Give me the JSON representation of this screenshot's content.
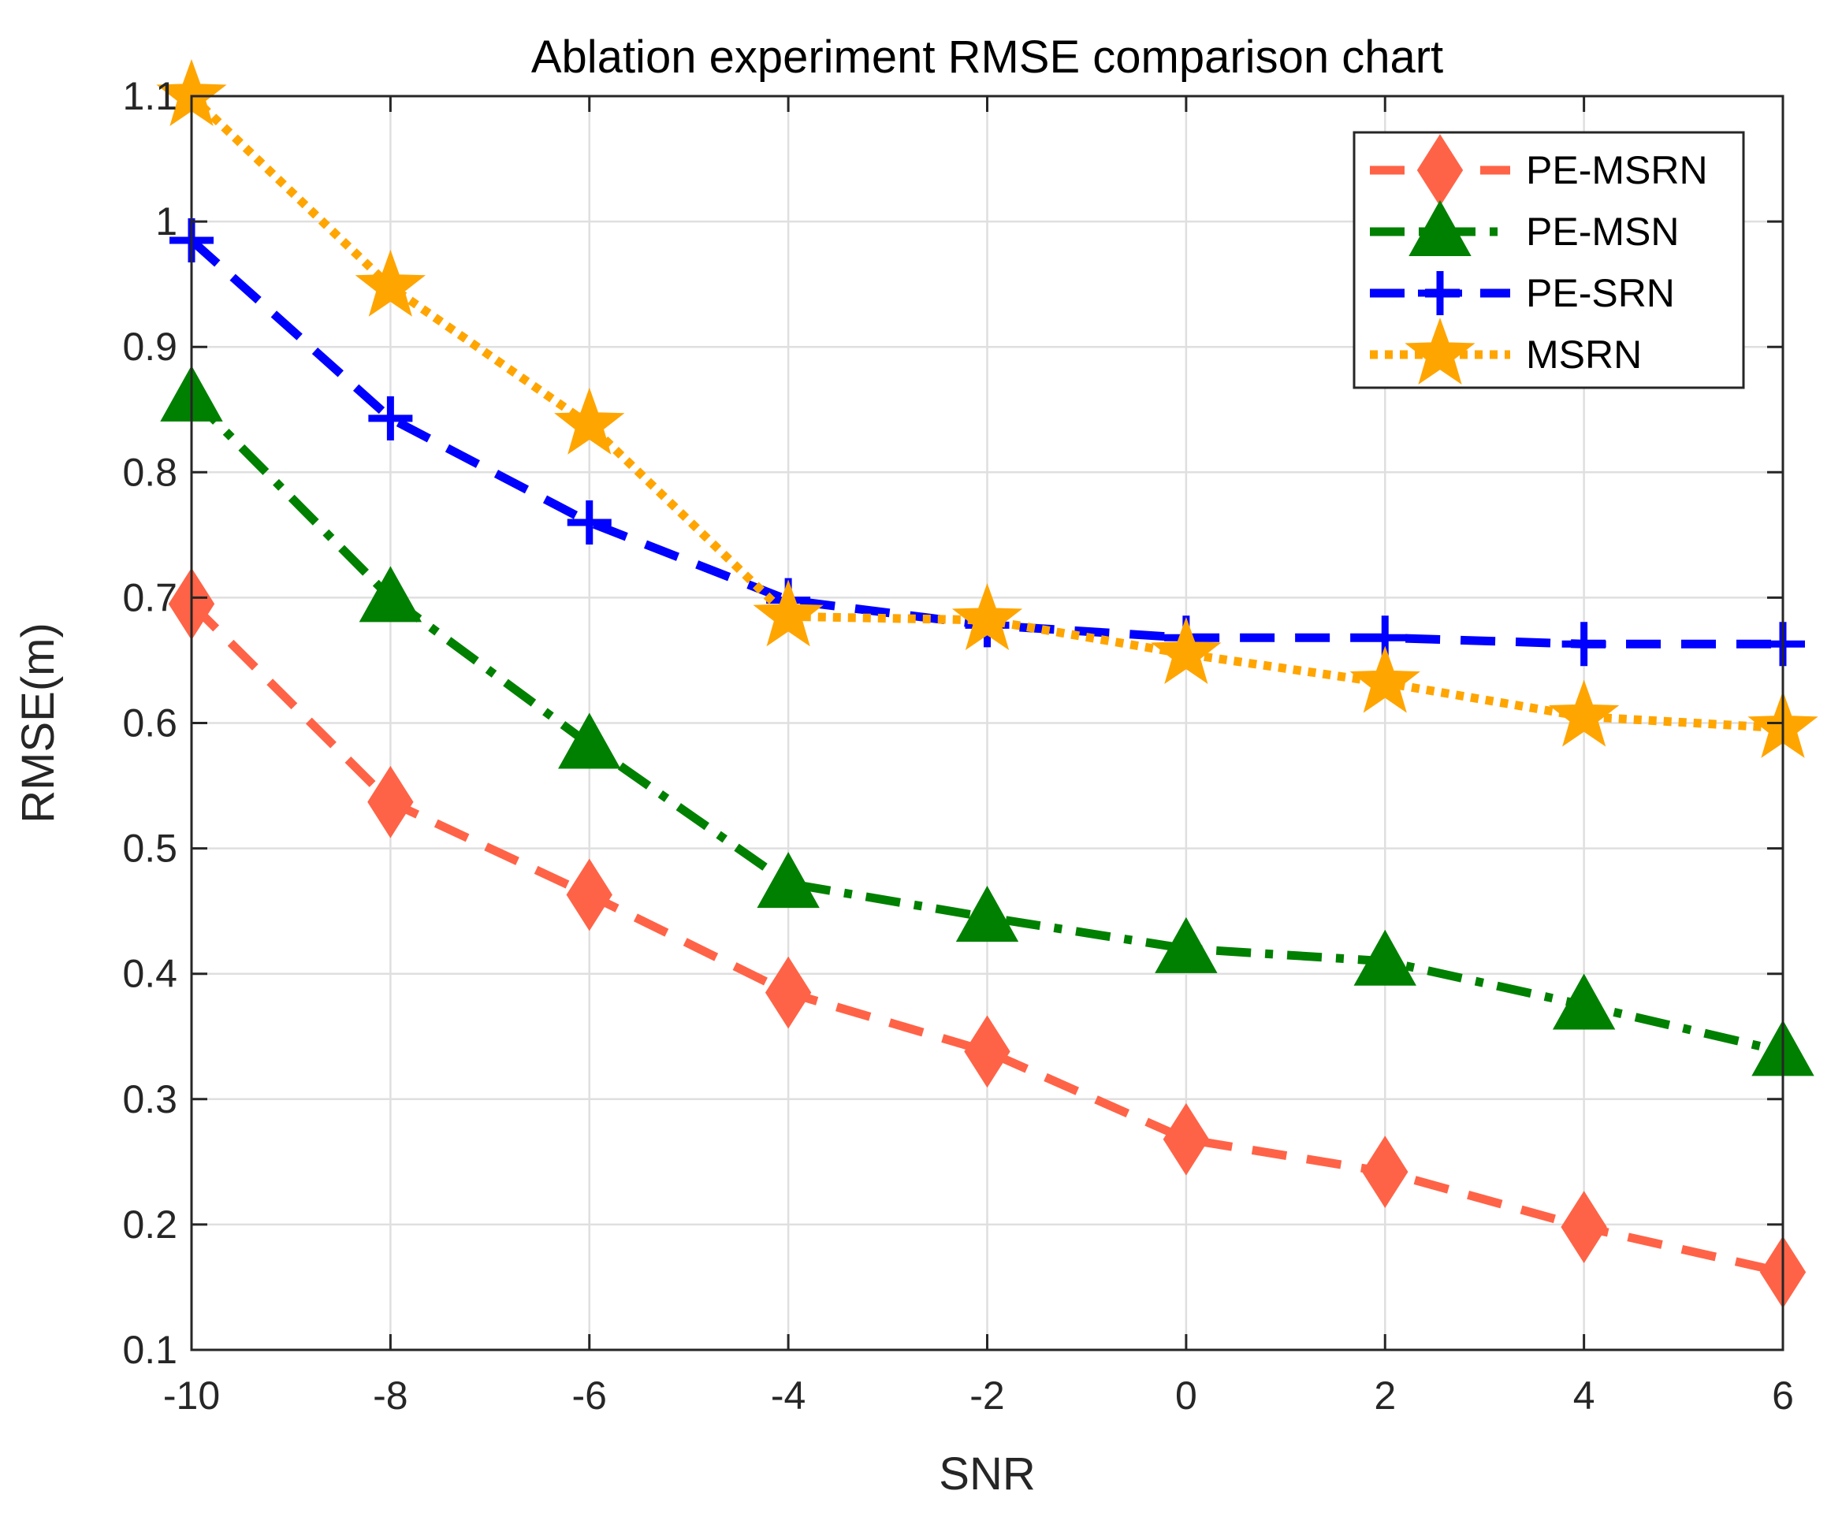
{
  "chart_data": {
    "type": "line",
    "title": "Ablation experiment RMSE comparison chart",
    "xlabel": "SNR",
    "ylabel": "RMSE(m)",
    "x": [
      -10,
      -8,
      -6,
      -4,
      -2,
      0,
      2,
      4,
      6
    ],
    "xlim": [
      -10,
      6
    ],
    "ylim": [
      0.1,
      1.1
    ],
    "xticks": [
      "-10",
      "-8",
      "-6",
      "-4",
      "-2",
      "0",
      "2",
      "4",
      "6"
    ],
    "yticks": [
      "0.1",
      "0.2",
      "0.3",
      "0.4",
      "0.5",
      "0.6",
      "0.7",
      "0.8",
      "0.9",
      "1",
      "1.1"
    ],
    "grid": true,
    "legend_position": "top-right",
    "series": [
      {
        "name": "PE-MSRN",
        "values": [
          0.695,
          0.537,
          0.463,
          0.385,
          0.338,
          0.268,
          0.242,
          0.198,
          0.162
        ],
        "color": "#FF6347",
        "line_style": "dashed",
        "marker": "diamond"
      },
      {
        "name": "PE-MSN",
        "values": [
          0.86,
          0.7,
          0.583,
          0.472,
          0.445,
          0.42,
          0.41,
          0.375,
          0.338
        ],
        "color": "#008000",
        "line_style": "dash-dot",
        "marker": "triangle"
      },
      {
        "name": "PE-SRN",
        "values": [
          0.985,
          0.843,
          0.76,
          0.698,
          0.678,
          0.668,
          0.668,
          0.663,
          0.663
        ],
        "color": "#0000FF",
        "line_style": "dashed",
        "marker": "plus"
      },
      {
        "name": "MSRN",
        "values": [
          1.1,
          0.948,
          0.838,
          0.685,
          0.682,
          0.655,
          0.632,
          0.605,
          0.596
        ],
        "color": "#FFA500",
        "line_style": "dotted",
        "marker": "star"
      }
    ]
  }
}
